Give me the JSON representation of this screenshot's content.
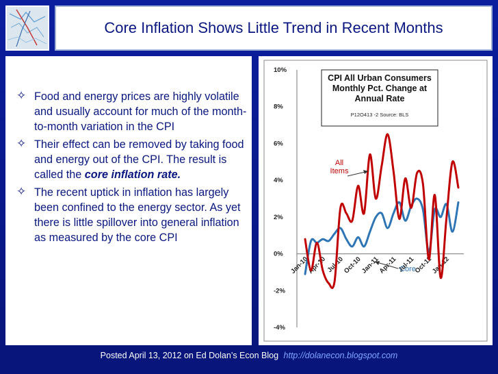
{
  "slide": {
    "title": "Core Inflation Shows Little Trend in Recent Months",
    "bullets": [
      {
        "text": "Food and energy prices are highly volatile and usually account for much of the month-to-month variation in the CPI",
        "emph": ""
      },
      {
        "text": "Their effect can be removed by taking food and energy out of the CPI. The result is called the ",
        "emph": "core inflation rate."
      },
      {
        "text": "The recent uptick in inflation has largely been confined to the energy sector. As yet there is little spillover into general inflation as measured by the core CPI",
        "emph": ""
      }
    ],
    "bullet_icon": "diamond-outline-icon",
    "footer_text": "Posted April 13, 2012 on Ed Dolan’s Econ Blog",
    "footer_link": "http://dolanecon.blogspot.com"
  },
  "chart_data": {
    "type": "line",
    "title_lines": [
      "CPI All Urban Consumers",
      "Monthly Pct. Change at",
      "Annual Rate"
    ],
    "note": "P12O413 -2 Source: BLS",
    "y_ticks": [
      "10%",
      "8%",
      "6%",
      "4%",
      "2%",
      "0%",
      "-2%",
      "-4%"
    ],
    "ylim": [
      -4,
      10
    ],
    "x_tick_labels": [
      "Jan-10",
      "Apr-10",
      "Jul-10",
      "Oct-10",
      "Jan-11",
      "Apr-11",
      "Jul-11",
      "Oct-11",
      "Jan-12"
    ],
    "x_tick_index": [
      0,
      3,
      6,
      9,
      12,
      15,
      18,
      21,
      24
    ],
    "months": [
      "Jan-10",
      "Feb-10",
      "Mar-10",
      "Apr-10",
      "May-10",
      "Jun-10",
      "Jul-10",
      "Aug-10",
      "Sep-10",
      "Oct-10",
      "Nov-10",
      "Dec-10",
      "Jan-11",
      "Feb-11",
      "Mar-11",
      "Apr-11",
      "May-11",
      "Jun-11",
      "Jul-11",
      "Aug-11",
      "Sep-11",
      "Oct-11",
      "Nov-11",
      "Dec-11",
      "Jan-12",
      "Feb-12",
      "Mar-12"
    ],
    "series": [
      {
        "name": "All Items",
        "color": "#c00000",
        "values": [
          0.8,
          -0.9,
          0.6,
          -0.9,
          -1.6,
          -1.5,
          2.5,
          2.2,
          1.8,
          3.7,
          2.2,
          5.4,
          3.0,
          4.8,
          6.5,
          4.5,
          1.9,
          4.1,
          2.5,
          4.4,
          3.8,
          -0.3,
          3.2,
          -1.3,
          2.0,
          5.0,
          3.6
        ]
      },
      {
        "name": "Core",
        "color": "#2e75b6",
        "values": [
          -1.1,
          0.7,
          0.6,
          0.8,
          0.7,
          1.1,
          1.4,
          0.8,
          0.4,
          0.9,
          0.4,
          1.2,
          2.0,
          2.2,
          1.4,
          2.2,
          2.8,
          1.8,
          2.6,
          3.0,
          2.4,
          0.1,
          2.4,
          2.0,
          2.7,
          1.2,
          2.8
        ]
      }
    ],
    "annotations": [
      {
        "text_lines": [
          "All",
          "Items"
        ],
        "series": "All Items",
        "color": "#c00000"
      },
      {
        "text_lines": [
          "Core"
        ],
        "series": "Core",
        "color": "#2e75b6"
      }
    ],
    "grid": false
  }
}
